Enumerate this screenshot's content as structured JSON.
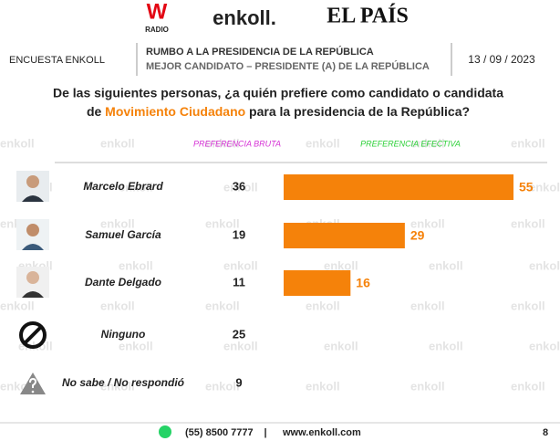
{
  "header": {
    "logo_w": "W",
    "logo_radio": "RADIO",
    "logo_enkoll": "enkoll.",
    "logo_pais": "EL PAÍS",
    "survey": "ENCUESTA ENKOLL",
    "title": "RUMBO A LA PRESIDENCIA DE LA REPÚBLICA",
    "subtitle": "MEJOR CANDIDATO – PRESIDENTE (A) DE LA REPÚBLICA",
    "date": "13 / 09 / 2023"
  },
  "question": {
    "line1": "De las siguientes personas, ¿a quién prefiere como candidato o candidata",
    "line2_before": "de ",
    "highlight": "Movimiento Ciudadano",
    "line2_after": " para la presidencia de la República?"
  },
  "watermark": "enkoll",
  "chart_data": {
    "type": "bar",
    "categories": [
      "Marcelo Ebrard",
      "Samuel García",
      "Dante Delgado",
      "Ninguno",
      "No sabe / No respondió"
    ],
    "series": [
      {
        "name": "PREFERENCIA BRUTA",
        "color": "#d633d6",
        "values": [
          36,
          19,
          11,
          25,
          9
        ]
      },
      {
        "name": "PREFERENCIA EFECTIVA",
        "color": "#f5820a",
        "values": [
          55,
          29,
          16,
          null,
          null
        ]
      }
    ]
  },
  "footer": {
    "phone": "(55) 8500 7777",
    "separator": "|",
    "web": "www.enkoll.com",
    "page": "8"
  }
}
